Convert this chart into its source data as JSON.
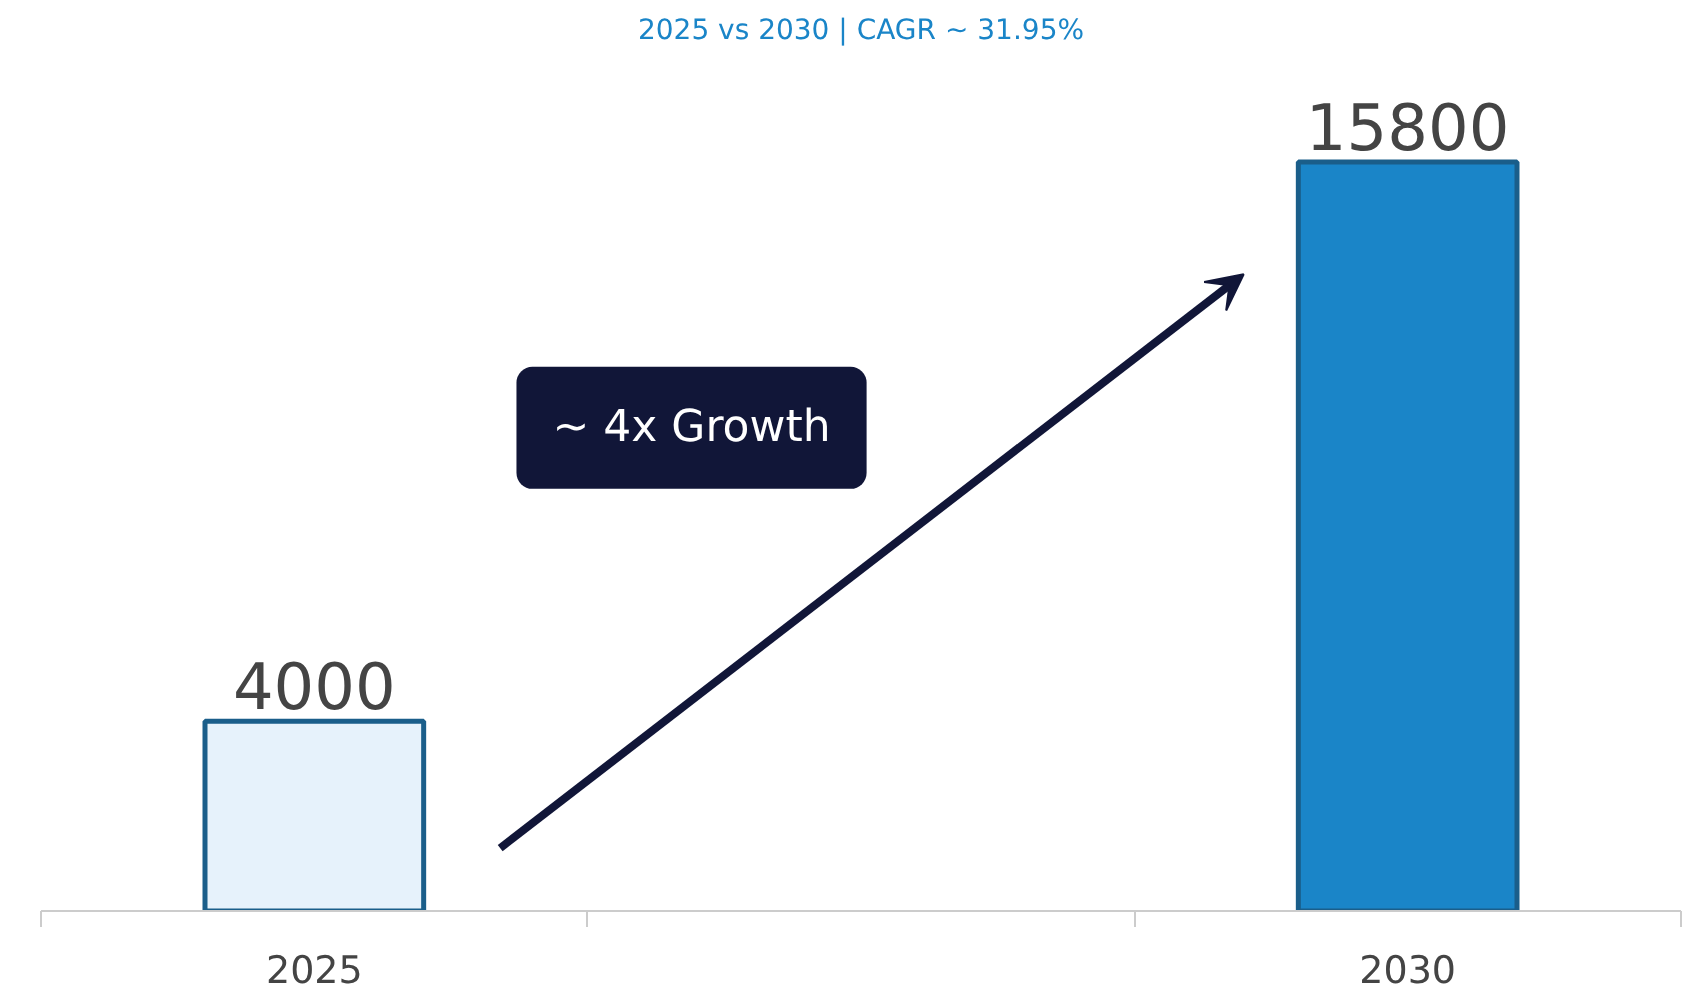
{
  "chart_data": {
    "type": "bar",
    "title": "2025 vs 2030 | CAGR ~ 31.95%",
    "categories": [
      "2025",
      null,
      "2030"
    ],
    "values": [
      4000,
      null,
      15800
    ],
    "colors": [
      "#e6f2fb",
      "#ffffff",
      "#1a85c8"
    ],
    "data_labels": true,
    "grid": false,
    "annotations": [
      "~ 4x Growth"
    ]
  }
}
